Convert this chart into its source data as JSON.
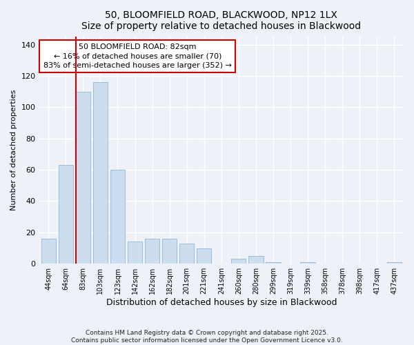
{
  "title1": "50, BLOOMFIELD ROAD, BLACKWOOD, NP12 1LX",
  "title2": "Size of property relative to detached houses in Blackwood",
  "xlabel": "Distribution of detached houses by size in Blackwood",
  "ylabel": "Number of detached properties",
  "bar_labels": [
    "44sqm",
    "64sqm",
    "83sqm",
    "103sqm",
    "123sqm",
    "142sqm",
    "162sqm",
    "182sqm",
    "201sqm",
    "221sqm",
    "241sqm",
    "260sqm",
    "280sqm",
    "299sqm",
    "319sqm",
    "339sqm",
    "358sqm",
    "378sqm",
    "398sqm",
    "417sqm",
    "437sqm"
  ],
  "bar_values": [
    16,
    63,
    110,
    116,
    60,
    14,
    16,
    16,
    13,
    10,
    0,
    3,
    5,
    1,
    0,
    1,
    0,
    0,
    0,
    0,
    1
  ],
  "bar_color": "#ccddf0",
  "bar_edge_color": "#9bbcd8",
  "vline_color": "#cc0000",
  "annotation_text": "50 BLOOMFIELD ROAD: 82sqm\n← 16% of detached houses are smaller (70)\n83% of semi-detached houses are larger (352) →",
  "annotation_box_color": "#ffffff",
  "annotation_box_edge": "#cc0000",
  "ylim": [
    0,
    145
  ],
  "yticks": [
    0,
    20,
    40,
    60,
    80,
    100,
    120,
    140
  ],
  "footer1": "Contains HM Land Registry data © Crown copyright and database right 2025.",
  "footer2": "Contains public sector information licensed under the Open Government Licence v3.0.",
  "bg_color": "#eef2f8"
}
